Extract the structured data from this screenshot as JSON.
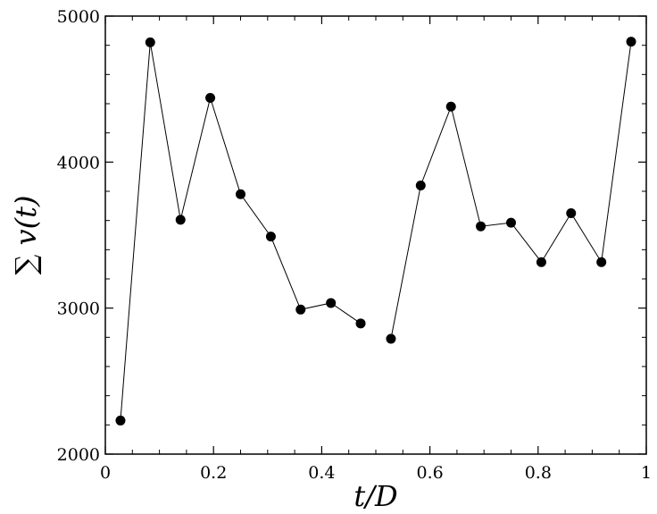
{
  "chart_data": {
    "type": "line",
    "title": "",
    "xlabel": "t/D",
    "ylabel": "∑ v(t)",
    "xlim": [
      0,
      1
    ],
    "ylim": [
      2000,
      5000
    ],
    "x_ticks": [
      0,
      0.2,
      0.4,
      0.6,
      0.8,
      1
    ],
    "x_tick_labels": [
      "0",
      "0.2",
      "0.4",
      "0.6",
      "0.8",
      "1"
    ],
    "y_ticks": [
      2000,
      3000,
      4000,
      5000
    ],
    "y_tick_labels": [
      "2000",
      "3000",
      "4000",
      "5000"
    ],
    "grid": false,
    "marker": "filled-circle",
    "color": "#000000",
    "segments": [
      [
        {
          "x": 0.028,
          "y": 2230
        },
        {
          "x": 0.083,
          "y": 4820
        },
        {
          "x": 0.139,
          "y": 3605
        },
        {
          "x": 0.194,
          "y": 4440
        },
        {
          "x": 0.25,
          "y": 3780
        },
        {
          "x": 0.306,
          "y": 3490
        },
        {
          "x": 0.361,
          "y": 2990
        },
        {
          "x": 0.417,
          "y": 3035
        },
        {
          "x": 0.472,
          "y": 2895
        }
      ],
      [
        {
          "x": 0.528,
          "y": 2790
        },
        {
          "x": 0.583,
          "y": 3840
        },
        {
          "x": 0.639,
          "y": 4380
        },
        {
          "x": 0.694,
          "y": 3560
        },
        {
          "x": 0.75,
          "y": 3585
        },
        {
          "x": 0.806,
          "y": 3315
        },
        {
          "x": 0.861,
          "y": 3650
        },
        {
          "x": 0.917,
          "y": 3315
        },
        {
          "x": 0.972,
          "y": 4825
        }
      ]
    ]
  }
}
